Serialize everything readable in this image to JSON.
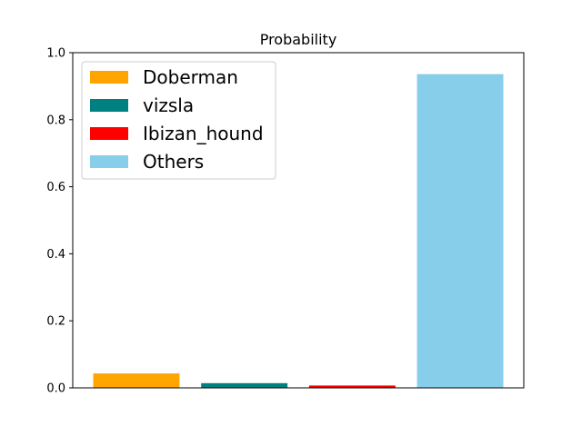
{
  "chart_data": {
    "type": "bar",
    "title": "Probability",
    "xlabel": "",
    "ylabel": "",
    "ylim": [
      0,
      1.0
    ],
    "yticks": [
      "0.0",
      "0.2",
      "0.4",
      "0.6",
      "0.8",
      "1.0"
    ],
    "ytick_values": [
      0,
      0.2,
      0.4,
      0.6,
      0.8,
      1.0
    ],
    "grid": false,
    "legend_position": "top-left",
    "bars": [
      {
        "name": "Doberman",
        "value": 0.043,
        "color": "#FFA500"
      },
      {
        "name": "vizsla",
        "value": 0.014,
        "color": "#008080"
      },
      {
        "name": "Ibizan_hound",
        "value": 0.007,
        "color": "#FF0000"
      },
      {
        "name": "Others",
        "value": 0.936,
        "color": "#87CEEB"
      }
    ]
  }
}
